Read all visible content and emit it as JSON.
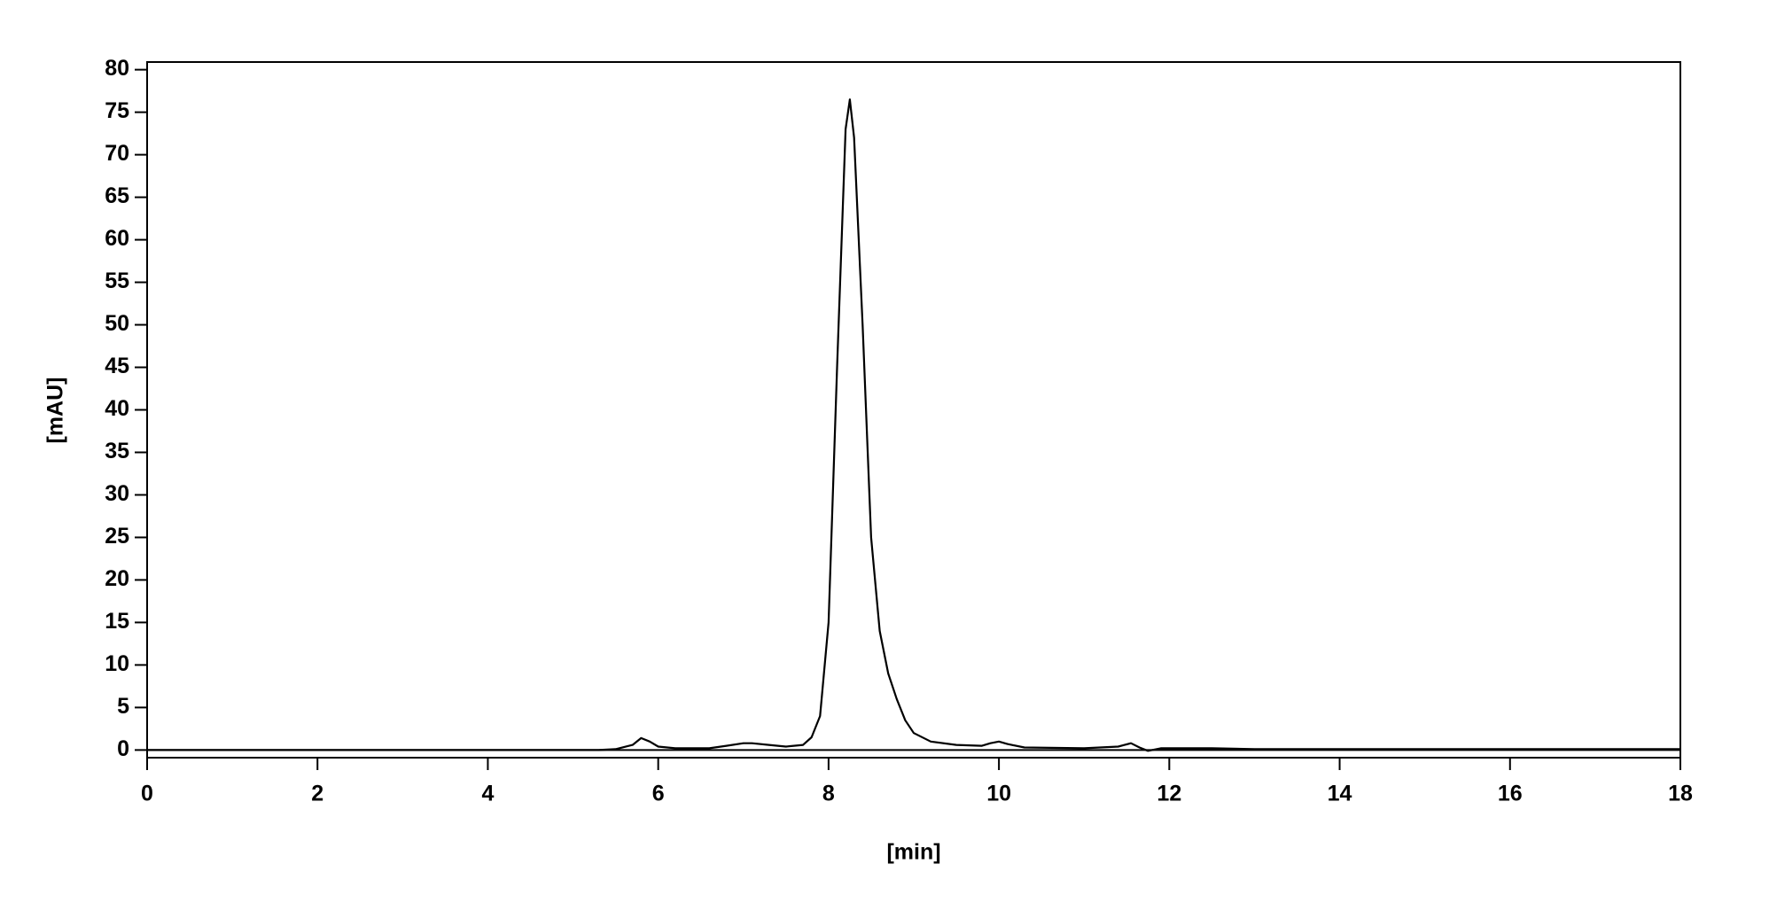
{
  "chart_data": {
    "type": "line",
    "xlabel": "[min]",
    "ylabel": "[mAU]",
    "xlim": [
      0,
      18
    ],
    "ylim": [
      -0.9,
      80.9
    ],
    "xticks": [
      0,
      2,
      4,
      6,
      8,
      10,
      12,
      14,
      16,
      18
    ],
    "yticks": [
      0,
      5,
      10,
      15,
      20,
      25,
      30,
      35,
      40,
      45,
      50,
      55,
      60,
      65,
      70,
      75,
      80
    ],
    "series": [
      {
        "color": "#000000",
        "x": [
          0,
          5.3,
          5.5,
          5.7,
          5.8,
          5.9,
          6.0,
          6.2,
          6.6,
          6.8,
          7.0,
          7.1,
          7.3,
          7.5,
          7.7,
          7.8,
          7.9,
          8.0,
          8.1,
          8.2,
          8.25,
          8.3,
          8.4,
          8.5,
          8.6,
          8.7,
          8.8,
          8.9,
          9.0,
          9.2,
          9.5,
          9.8,
          9.9,
          10.0,
          10.1,
          10.3,
          11.0,
          11.4,
          11.55,
          11.65,
          11.75,
          11.9,
          12.5,
          13,
          18
        ],
        "values": [
          0,
          0,
          0.1,
          0.6,
          1.4,
          1.0,
          0.4,
          0.2,
          0.2,
          0.5,
          0.8,
          0.8,
          0.6,
          0.4,
          0.6,
          1.5,
          4,
          15,
          45,
          73,
          76.5,
          72,
          50,
          25,
          14,
          9,
          6,
          3.5,
          2,
          1,
          0.6,
          0.5,
          0.8,
          1.0,
          0.7,
          0.3,
          0.2,
          0.4,
          0.8,
          0.3,
          -0.1,
          0.2,
          0.2,
          0.1,
          0.1
        ]
      }
    ]
  }
}
